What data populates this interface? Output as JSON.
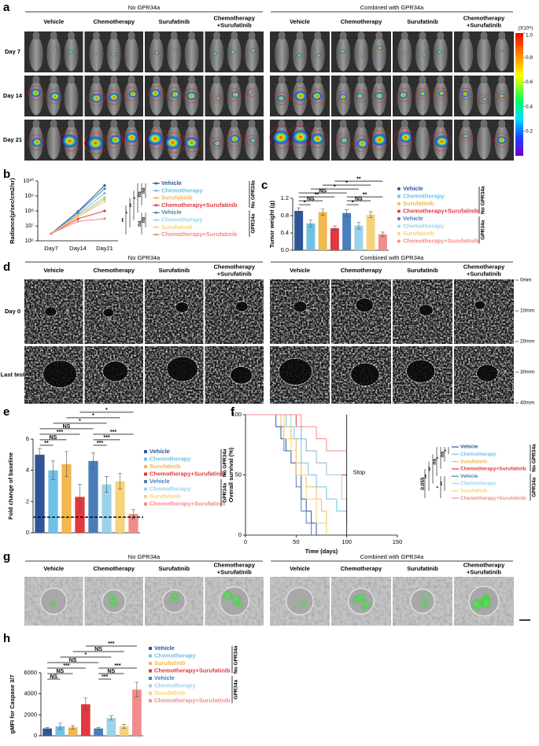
{
  "panel_labels": [
    "a",
    "b",
    "c",
    "d",
    "e",
    "f",
    "g",
    "h"
  ],
  "imaging": {
    "groups": [
      "No GPR34a",
      "Combined with GPR34a"
    ],
    "columns": [
      [
        "Vehicle"
      ],
      [
        "Chemotherapy"
      ],
      [
        "Surufatinib"
      ],
      [
        "Chemotherapy",
        "+Surufatinib"
      ],
      [
        "Vehicle"
      ],
      [
        "Chemotherapy"
      ],
      [
        "Surufatinib"
      ],
      [
        "Chemotherapy",
        "+Surufatinib"
      ]
    ],
    "rows": [
      "Day 7",
      "Day 14",
      "Day 21"
    ],
    "colorbar": {
      "unit": "(X10⁶)",
      "clim": [
        0,
        1
      ],
      "ticks": [
        {
          "value": 1,
          "label": "1.0"
        },
        0.8,
        0.6,
        0.4,
        0.2
      ]
    }
  },
  "ultrasound": {
    "groups": [
      "No GPR34a",
      "Combined with GPR34a"
    ],
    "columns": [
      [
        "Vehicle"
      ],
      [
        "Chemotherapy"
      ],
      [
        "Surufatinib"
      ],
      [
        "Chemotherapy",
        "+Surufatinib"
      ],
      [
        "Vehicle"
      ],
      [
        "Chemotherapy"
      ],
      [
        "Surufatinib"
      ],
      [
        "Chemotherapy",
        "+Surufatinib"
      ]
    ],
    "rows": [
      "Day 0",
      "Last test"
    ],
    "depth": [
      "0mm",
      "10mm",
      "20mm",
      "30mm",
      "40mm"
    ],
    "markers": [
      "s",
      "s",
      "k",
      "s",
      "s",
      "s",
      "s",
      "k",
      "s",
      "s"
    ]
  },
  "organoids": {
    "groups": [
      "No GPR34a",
      "Combined with GPR34a"
    ],
    "columns": [
      [
        "Vehicle"
      ],
      [
        "Chemotherapy"
      ],
      [
        "Surufatinib"
      ],
      [
        "Chemotherapy",
        "+Surufatinib"
      ],
      [
        "Vehicle"
      ],
      [
        "Chemotherapy"
      ],
      [
        "Surufatinib"
      ],
      [
        "Chemotherapy",
        "+Surufatinib"
      ]
    ]
  },
  "chart_data": [
    {
      "type": "line",
      "y_label": "Radiance(p/sec/cm2/sr)",
      "categories": [
        "Day7",
        "Day14",
        "Day21"
      ],
      "log_y": true,
      "ylim": [
        1000000,
        10000000000
      ],
      "yticks": [
        {
          "value": 1000000,
          "label": "10⁶"
        },
        {
          "value": 10000000,
          "label": "10⁷"
        },
        {
          "value": 100000000,
          "label": "10⁸"
        },
        {
          "value": 1000000000,
          "label": "10⁹"
        },
        {
          "value": 10000000000,
          "label": "10¹⁰"
        }
      ],
      "series": [
        {
          "name": "Vehicle",
          "color": "#2f5597",
          "values": [
            3000000,
            90000000,
            5000000000
          ]
        },
        {
          "name": "Chemotherapy",
          "color": "#6ec1e4",
          "values": [
            3000000,
            60000000,
            1500000000
          ]
        },
        {
          "name": "Surufatinib",
          "color": "#f2b84b",
          "values": [
            3000000,
            50000000,
            800000000
          ]
        },
        {
          "name": "Chemotherapy+Surufatinib",
          "color": "#e0393e",
          "values": [
            3000000,
            30000000,
            100000000
          ]
        },
        {
          "name": "Vehicle",
          "color": "#4a7ebb",
          "values": [
            3000000,
            80000000,
            3000000000
          ]
        },
        {
          "name": "Chemotherapy",
          "color": "#9ad3ea",
          "values": [
            3000000,
            40000000,
            600000000
          ]
        },
        {
          "name": "Surufatinib",
          "color": "#f6d27a",
          "values": [
            3000000,
            40000000,
            400000000
          ]
        },
        {
          "name": "Chemotherapy+Surufatinib",
          "color": "#f28b8b",
          "values": [
            3000000,
            20000000,
            30000000
          ]
        }
      ],
      "legend_groups": [
        "No GPR34a",
        "GPR34a"
      ],
      "significance": [
        "**",
        "*",
        "**",
        "*",
        "ns",
        "ns",
        "ns",
        "ns"
      ]
    },
    {
      "type": "bar",
      "y_label": "Tumor weight (g)",
      "categories": [
        "Vehicle",
        "Chemotherapy",
        "Surufatinib",
        "Chemotherapy+Surufatinib",
        "Vehicle",
        "Chemotherapy",
        "Surufatinib",
        "Chemotherapy+Surufatinib"
      ],
      "colors": [
        "#2f5597",
        "#6ec1e4",
        "#f2b84b",
        "#e0393e",
        "#4a7ebb",
        "#9ad3ea",
        "#f6d27a",
        "#f28b8b"
      ],
      "values": [
        0.91,
        0.62,
        0.88,
        0.51,
        0.86,
        0.57,
        0.82,
        0.37
      ],
      "errors": [
        0.07,
        0.08,
        0.07,
        0.05,
        0.08,
        0.08,
        0.07,
        0.05
      ],
      "ylim": [
        0,
        1.2
      ],
      "yticks": [
        {
          "value": 0,
          "label": "0.0"
        },
        0.4,
        0.8,
        1.2
      ],
      "legend_marker": "dot",
      "legend_groups": [
        "No GPR34a",
        "GPR34a"
      ],
      "significance": [
        "**",
        "*",
        "*",
        "NS",
        "**",
        "**",
        "NS",
        "NS",
        "*",
        "*"
      ]
    },
    {
      "type": "bar",
      "y_label": "Fold change of baseline",
      "categories": [
        "Vehicle",
        "Chemotherapy",
        "Surufatinib",
        "Chemotherapy+Surufatinib",
        "Vehicle",
        "Chemotherapy",
        "Surufatinib",
        "Chemotherapy+Surufatinib"
      ],
      "colors": [
        "#2f5597",
        "#6ec1e4",
        "#f2b84b",
        "#e0393e",
        "#4a7ebb",
        "#9ad3ea",
        "#f6d27a",
        "#f28b8b"
      ],
      "values": [
        5.0,
        4.0,
        4.4,
        2.3,
        4.6,
        3.1,
        3.3,
        1.2
      ],
      "errors": [
        0.4,
        0.6,
        0.8,
        0.8,
        0.5,
        0.5,
        0.5,
        0.3
      ],
      "ylim": [
        0,
        6
      ],
      "yticks": [
        0,
        2,
        4,
        6
      ],
      "hline": 1,
      "legend_marker": "square",
      "legend_groups": [
        "No GPR34a",
        "GPR34a"
      ],
      "significance": [
        "*",
        "*",
        "*",
        "NS",
        "***",
        "***",
        "NS",
        "***",
        "**",
        "***"
      ]
    },
    {
      "type": "step",
      "x_label": "Time (days)",
      "y_label": "Overall survival (%)",
      "xlim": [
        0,
        150
      ],
      "xticks": [
        0,
        50,
        100,
        150
      ],
      "ylim": [
        0,
        100
      ],
      "yticks": [
        0,
        50,
        100
      ],
      "annotation": "Stop",
      "stop_line": 100,
      "series": [
        {
          "name": "Vehicle",
          "color": "#2f5597",
          "x": [
            0,
            30,
            35,
            40,
            45,
            50,
            55,
            60,
            65,
            70
          ],
          "values": [
            100,
            90,
            80,
            70,
            60,
            50,
            30,
            20,
            10,
            0
          ]
        },
        {
          "name": "Chemotherapy",
          "color": "#6ec1e4",
          "x": [
            0,
            40,
            48,
            55,
            62,
            70,
            80,
            90,
            100
          ],
          "values": [
            100,
            90,
            80,
            60,
            50,
            40,
            30,
            20,
            10
          ]
        },
        {
          "name": "Surufatinib",
          "color": "#f2b84b",
          "x": [
            0,
            35,
            45,
            50,
            55,
            60,
            70,
            75,
            80
          ],
          "values": [
            100,
            90,
            80,
            60,
            50,
            40,
            30,
            20,
            0
          ]
        },
        {
          "name": "Chemotherapy+Surufatinib",
          "color": "#e0393e",
          "x": [
            0,
            50,
            55,
            60,
            70,
            80,
            100
          ],
          "values": [
            100,
            90,
            80,
            70,
            60,
            50,
            50
          ]
        },
        {
          "name": "Vehicle",
          "color": "#4a7ebb",
          "x": [
            0,
            30,
            38,
            45,
            50,
            55,
            60,
            65
          ],
          "values": [
            100,
            90,
            70,
            60,
            40,
            20,
            10,
            0
          ]
        },
        {
          "name": "Chemotherapy",
          "color": "#9ad3ea",
          "x": [
            0,
            45,
            55,
            60,
            70,
            80,
            95,
            100
          ],
          "values": [
            100,
            90,
            80,
            70,
            60,
            50,
            30,
            20
          ]
        },
        {
          "name": "Surufatinib",
          "color": "#f6d27a",
          "x": [
            0,
            38,
            45,
            50,
            60,
            70,
            80
          ],
          "values": [
            100,
            80,
            70,
            50,
            30,
            10,
            0
          ]
        },
        {
          "name": "Chemotherapy+Surufatinib",
          "color": "#f28b8b",
          "x": [
            0,
            55,
            70,
            80,
            90,
            100
          ],
          "values": [
            100,
            90,
            80,
            70,
            70,
            70
          ]
        }
      ],
      "legend_groups": [
        "No GPR34a",
        "GPR34a"
      ],
      "significance": [
        "0.055",
        "**",
        "**",
        "ns",
        "*",
        "*",
        "ns",
        "**",
        "*"
      ]
    },
    {
      "type": "bar",
      "y_label": "gMFI for Caspase 3/7",
      "categories": [
        "Vehicle",
        "Chemotherapy",
        "Surufatinib",
        "Chemotherapy+Surufatinib",
        "Vehicle",
        "Chemotherapy",
        "Surufatinib",
        "Chemotherapy+Surufatinib"
      ],
      "colors": [
        "#2f5597",
        "#6ec1e4",
        "#f2b84b",
        "#e0393e",
        "#4a7ebb",
        "#9ad3ea",
        "#f6d27a",
        "#f28b8b"
      ],
      "values": [
        700,
        900,
        800,
        3000,
        700,
        1700,
        900,
        4400
      ],
      "errors": [
        100,
        300,
        150,
        600,
        100,
        200,
        200,
        700
      ],
      "ylim": [
        0,
        6000
      ],
      "yticks": [
        0,
        2000,
        4000,
        6000
      ],
      "legend_marker": "square",
      "legend_groups": [
        "No GPR34a",
        "GPR34a"
      ],
      "significance": [
        "***",
        "NS",
        "*",
        "NS",
        "***",
        "***",
        "NS",
        "NS",
        "NS",
        "***"
      ]
    }
  ]
}
